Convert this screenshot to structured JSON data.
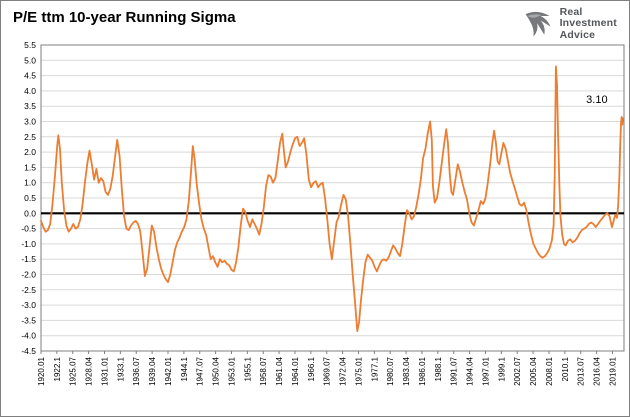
{
  "header": {
    "title": "P/E ttm 10-year Running Sigma"
  },
  "logo": {
    "name_lines": [
      "Real",
      "Investment",
      "Advice"
    ],
    "icon": "eagle-icon",
    "color": "#53565A"
  },
  "chart_data": {
    "type": "line",
    "title": "P/E ttm 10-year Running Sigma",
    "xlabel": "",
    "ylabel": "",
    "ylim": [
      -4.5,
      5.5
    ],
    "xlim": [
      1920,
      2021
    ],
    "grid": "horizontal",
    "legend": "none",
    "zero_line": true,
    "colors": {
      "line": "#ED7D31",
      "grid": "#D9D9D9",
      "zero_line": "#000000",
      "border": "#7f7f7f",
      "tick_text": "#000000"
    },
    "y_tick_labels": [
      "5.5",
      "5.0",
      "4.5",
      "4.0",
      "3.5",
      "3.0",
      "2.5",
      "2.0",
      "1.5",
      "1.0",
      "0.5",
      "0.0",
      "-0.5",
      "-1.0",
      "-1.5",
      "-2.0",
      "-2.5",
      "-3.0",
      "-3.5",
      "-4.0",
      "-4.5"
    ],
    "x_tick_labels": [
      "1920.01",
      "1922.1",
      "1925.07",
      "1928.04",
      "1931.01",
      "1933.1",
      "1936.07",
      "1939.04",
      "1942.01",
      "1944.1",
      "1947.07",
      "1950.04",
      "1953.01",
      "1955.1",
      "1958.07",
      "1961.04",
      "1964.01",
      "1966.1",
      "1969.07",
      "1972.04",
      "1975.01",
      "1977.1",
      "1980.07",
      "1983.04",
      "1986.01",
      "1988.1",
      "1991.07",
      "1994.04",
      "1997.01",
      "1999.1",
      "2002.07",
      "2005.04",
      "2008.01",
      "2010.1",
      "2013.07",
      "2016.04",
      "2019.01"
    ],
    "annotation": {
      "text": "3.10",
      "x": 2016.3,
      "y": 3.6
    },
    "series": [
      {
        "name": "P/E ttm 10-year Running Sigma",
        "color": "#ED7D31",
        "points": [
          [
            1920.0,
            -0.25
          ],
          [
            1920.4,
            -0.45
          ],
          [
            1920.8,
            -0.6
          ],
          [
            1921.2,
            -0.55
          ],
          [
            1921.6,
            -0.35
          ],
          [
            1922.0,
            0.3
          ],
          [
            1922.4,
            1.2
          ],
          [
            1922.8,
            2.2
          ],
          [
            1923.0,
            2.55
          ],
          [
            1923.3,
            2.1
          ],
          [
            1923.6,
            1.0
          ],
          [
            1924.0,
            0.1
          ],
          [
            1924.4,
            -0.4
          ],
          [
            1924.8,
            -0.6
          ],
          [
            1925.2,
            -0.5
          ],
          [
            1925.6,
            -0.35
          ],
          [
            1926.0,
            -0.5
          ],
          [
            1926.4,
            -0.45
          ],
          [
            1926.8,
            -0.2
          ],
          [
            1927.2,
            0.3
          ],
          [
            1927.6,
            1.0
          ],
          [
            1928.0,
            1.6
          ],
          [
            1928.4,
            2.05
          ],
          [
            1928.8,
            1.6
          ],
          [
            1929.2,
            1.1
          ],
          [
            1929.6,
            1.45
          ],
          [
            1930.0,
            1.0
          ],
          [
            1930.4,
            1.15
          ],
          [
            1930.8,
            1.05
          ],
          [
            1931.2,
            0.7
          ],
          [
            1931.6,
            0.6
          ],
          [
            1932.0,
            0.8
          ],
          [
            1932.4,
            1.2
          ],
          [
            1932.8,
            1.8
          ],
          [
            1933.2,
            2.4
          ],
          [
            1933.6,
            1.9
          ],
          [
            1934.0,
            0.8
          ],
          [
            1934.4,
            -0.1
          ],
          [
            1934.8,
            -0.5
          ],
          [
            1935.2,
            -0.55
          ],
          [
            1935.6,
            -0.4
          ],
          [
            1936.0,
            -0.3
          ],
          [
            1936.4,
            -0.25
          ],
          [
            1936.8,
            -0.35
          ],
          [
            1937.2,
            -0.6
          ],
          [
            1937.6,
            -1.3
          ],
          [
            1938.0,
            -2.05
          ],
          [
            1938.4,
            -1.8
          ],
          [
            1938.8,
            -1.1
          ],
          [
            1939.2,
            -0.4
          ],
          [
            1939.6,
            -0.6
          ],
          [
            1940.0,
            -1.1
          ],
          [
            1940.4,
            -1.5
          ],
          [
            1940.8,
            -1.8
          ],
          [
            1941.2,
            -2.0
          ],
          [
            1941.6,
            -2.15
          ],
          [
            1942.0,
            -2.25
          ],
          [
            1942.4,
            -2.0
          ],
          [
            1942.8,
            -1.6
          ],
          [
            1943.2,
            -1.2
          ],
          [
            1943.6,
            -0.95
          ],
          [
            1944.0,
            -0.8
          ],
          [
            1944.4,
            -0.6
          ],
          [
            1944.8,
            -0.45
          ],
          [
            1945.2,
            -0.2
          ],
          [
            1945.6,
            0.4
          ],
          [
            1946.0,
            1.4
          ],
          [
            1946.3,
            2.2
          ],
          [
            1946.6,
            1.8
          ],
          [
            1947.0,
            0.9
          ],
          [
            1947.4,
            0.3
          ],
          [
            1947.8,
            -0.2
          ],
          [
            1948.2,
            -0.5
          ],
          [
            1948.6,
            -0.7
          ],
          [
            1949.0,
            -1.1
          ],
          [
            1949.4,
            -1.5
          ],
          [
            1949.8,
            -1.4
          ],
          [
            1950.2,
            -1.6
          ],
          [
            1950.6,
            -1.75
          ],
          [
            1951.0,
            -1.5
          ],
          [
            1951.4,
            -1.6
          ],
          [
            1951.8,
            -1.55
          ],
          [
            1952.2,
            -1.65
          ],
          [
            1952.6,
            -1.7
          ],
          [
            1953.0,
            -1.85
          ],
          [
            1953.4,
            -1.9
          ],
          [
            1953.8,
            -1.6
          ],
          [
            1954.2,
            -1.1
          ],
          [
            1954.6,
            -0.4
          ],
          [
            1955.0,
            0.15
          ],
          [
            1955.4,
            0.05
          ],
          [
            1955.8,
            -0.25
          ],
          [
            1956.2,
            -0.45
          ],
          [
            1956.6,
            -0.2
          ],
          [
            1957.0,
            -0.35
          ],
          [
            1957.4,
            -0.5
          ],
          [
            1957.8,
            -0.7
          ],
          [
            1958.2,
            -0.35
          ],
          [
            1958.6,
            0.2
          ],
          [
            1959.0,
            0.9
          ],
          [
            1959.4,
            1.25
          ],
          [
            1959.8,
            1.2
          ],
          [
            1960.2,
            1.0
          ],
          [
            1960.6,
            1.15
          ],
          [
            1961.0,
            1.7
          ],
          [
            1961.4,
            2.3
          ],
          [
            1961.8,
            2.6
          ],
          [
            1962.1,
            2.0
          ],
          [
            1962.4,
            1.5
          ],
          [
            1962.8,
            1.7
          ],
          [
            1963.2,
            2.0
          ],
          [
            1963.6,
            2.25
          ],
          [
            1964.0,
            2.45
          ],
          [
            1964.4,
            2.5
          ],
          [
            1964.8,
            2.2
          ],
          [
            1965.2,
            2.3
          ],
          [
            1965.6,
            2.45
          ],
          [
            1966.0,
            1.9
          ],
          [
            1966.4,
            1.1
          ],
          [
            1966.8,
            0.85
          ],
          [
            1967.2,
            1.0
          ],
          [
            1967.6,
            1.05
          ],
          [
            1968.0,
            0.85
          ],
          [
            1968.4,
            0.95
          ],
          [
            1968.8,
            1.0
          ],
          [
            1969.2,
            0.5
          ],
          [
            1969.6,
            -0.2
          ],
          [
            1970.0,
            -1.0
          ],
          [
            1970.4,
            -1.5
          ],
          [
            1970.8,
            -0.9
          ],
          [
            1971.2,
            -0.3
          ],
          [
            1971.6,
            -0.1
          ],
          [
            1972.0,
            0.3
          ],
          [
            1972.4,
            0.6
          ],
          [
            1972.8,
            0.45
          ],
          [
            1973.2,
            -0.1
          ],
          [
            1973.6,
            -1.0
          ],
          [
            1974.0,
            -2.0
          ],
          [
            1974.4,
            -2.9
          ],
          [
            1974.8,
            -3.85
          ],
          [
            1975.1,
            -3.55
          ],
          [
            1975.4,
            -2.9
          ],
          [
            1975.8,
            -2.2
          ],
          [
            1976.2,
            -1.6
          ],
          [
            1976.6,
            -1.35
          ],
          [
            1977.0,
            -1.45
          ],
          [
            1977.4,
            -1.55
          ],
          [
            1977.8,
            -1.75
          ],
          [
            1978.2,
            -1.9
          ],
          [
            1978.6,
            -1.7
          ],
          [
            1979.0,
            -1.55
          ],
          [
            1979.4,
            -1.5
          ],
          [
            1979.8,
            -1.55
          ],
          [
            1980.2,
            -1.45
          ],
          [
            1980.6,
            -1.25
          ],
          [
            1981.0,
            -1.05
          ],
          [
            1981.4,
            -1.15
          ],
          [
            1981.8,
            -1.3
          ],
          [
            1982.2,
            -1.4
          ],
          [
            1982.6,
            -1.0
          ],
          [
            1983.0,
            -0.4
          ],
          [
            1983.4,
            0.1
          ],
          [
            1983.8,
            0.0
          ],
          [
            1984.2,
            -0.2
          ],
          [
            1984.6,
            -0.1
          ],
          [
            1985.0,
            0.2
          ],
          [
            1985.4,
            0.6
          ],
          [
            1985.8,
            1.1
          ],
          [
            1986.2,
            1.8
          ],
          [
            1986.6,
            2.1
          ],
          [
            1987.0,
            2.6
          ],
          [
            1987.4,
            3.0
          ],
          [
            1987.7,
            2.4
          ],
          [
            1987.9,
            0.9
          ],
          [
            1988.2,
            0.35
          ],
          [
            1988.6,
            0.5
          ],
          [
            1989.0,
            1.0
          ],
          [
            1989.4,
            1.6
          ],
          [
            1989.8,
            2.2
          ],
          [
            1990.2,
            2.75
          ],
          [
            1990.5,
            2.3
          ],
          [
            1990.8,
            1.3
          ],
          [
            1991.1,
            0.7
          ],
          [
            1991.4,
            0.6
          ],
          [
            1991.8,
            1.1
          ],
          [
            1992.2,
            1.6
          ],
          [
            1992.6,
            1.35
          ],
          [
            1993.0,
            1.0
          ],
          [
            1993.4,
            0.7
          ],
          [
            1993.8,
            0.45
          ],
          [
            1994.2,
            0.0
          ],
          [
            1994.6,
            -0.3
          ],
          [
            1995.0,
            -0.4
          ],
          [
            1995.4,
            -0.15
          ],
          [
            1995.8,
            0.1
          ],
          [
            1996.2,
            0.4
          ],
          [
            1996.6,
            0.3
          ],
          [
            1997.0,
            0.5
          ],
          [
            1997.4,
            1.0
          ],
          [
            1997.8,
            1.6
          ],
          [
            1998.2,
            2.3
          ],
          [
            1998.5,
            2.7
          ],
          [
            1998.8,
            2.3
          ],
          [
            1999.1,
            1.7
          ],
          [
            1999.4,
            1.6
          ],
          [
            1999.8,
            2.0
          ],
          [
            2000.1,
            2.3
          ],
          [
            2000.5,
            2.1
          ],
          [
            2000.9,
            1.7
          ],
          [
            2001.3,
            1.3
          ],
          [
            2001.7,
            1.05
          ],
          [
            2002.1,
            0.8
          ],
          [
            2002.5,
            0.55
          ],
          [
            2002.9,
            0.3
          ],
          [
            2003.3,
            0.25
          ],
          [
            2003.7,
            0.35
          ],
          [
            2004.1,
            0.1
          ],
          [
            2004.5,
            -0.35
          ],
          [
            2004.9,
            -0.7
          ],
          [
            2005.3,
            -1.0
          ],
          [
            2005.7,
            -1.15
          ],
          [
            2006.1,
            -1.3
          ],
          [
            2006.5,
            -1.4
          ],
          [
            2006.9,
            -1.45
          ],
          [
            2007.3,
            -1.4
          ],
          [
            2007.7,
            -1.3
          ],
          [
            2008.1,
            -1.15
          ],
          [
            2008.5,
            -0.9
          ],
          [
            2008.8,
            -0.4
          ],
          [
            2009.0,
            1.2
          ],
          [
            2009.2,
            4.8
          ],
          [
            2009.4,
            4.2
          ],
          [
            2009.6,
            2.4
          ],
          [
            2009.8,
            0.9
          ],
          [
            2010.0,
            -0.1
          ],
          [
            2010.3,
            -0.7
          ],
          [
            2010.6,
            -1.0
          ],
          [
            2010.9,
            -1.05
          ],
          [
            2011.3,
            -0.9
          ],
          [
            2011.7,
            -0.85
          ],
          [
            2012.1,
            -0.95
          ],
          [
            2012.5,
            -0.9
          ],
          [
            2012.9,
            -0.8
          ],
          [
            2013.3,
            -0.65
          ],
          [
            2013.7,
            -0.55
          ],
          [
            2014.1,
            -0.5
          ],
          [
            2014.5,
            -0.45
          ],
          [
            2014.9,
            -0.35
          ],
          [
            2015.3,
            -0.3
          ],
          [
            2015.7,
            -0.35
          ],
          [
            2016.1,
            -0.45
          ],
          [
            2016.5,
            -0.35
          ],
          [
            2016.9,
            -0.25
          ],
          [
            2017.3,
            -0.15
          ],
          [
            2017.7,
            -0.05
          ],
          [
            2018.1,
            0.0
          ],
          [
            2018.5,
            -0.1
          ],
          [
            2018.9,
            -0.45
          ],
          [
            2019.2,
            -0.25
          ],
          [
            2019.5,
            -0.05
          ],
          [
            2019.8,
            -0.15
          ],
          [
            2020.0,
            0.3
          ],
          [
            2020.2,
            1.2
          ],
          [
            2020.35,
            2.2
          ],
          [
            2020.5,
            3.0
          ],
          [
            2020.6,
            3.15
          ],
          [
            2020.7,
            2.9
          ],
          [
            2020.8,
            3.1
          ]
        ]
      }
    ]
  }
}
